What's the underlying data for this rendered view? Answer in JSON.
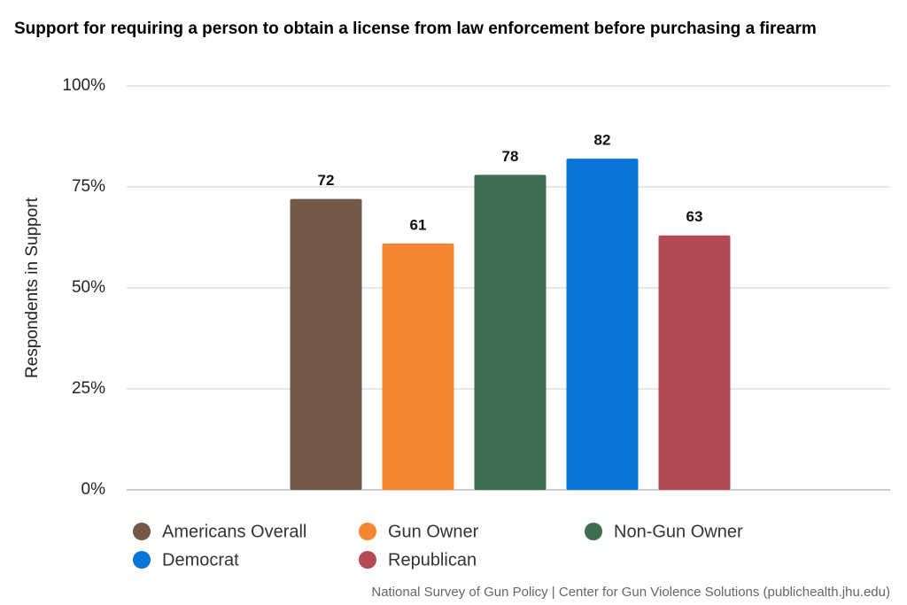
{
  "chart_data": {
    "type": "bar",
    "title": "Support for requiring a person to obtain a license from law enforcement before purchasing a firearm",
    "y_axis_label": "Respondents in Support",
    "source": "National Survey of Gun Policy | Center for Gun Violence Solutions (publichealth.jhu.edu)",
    "categories": [
      null
    ],
    "series": [
      {
        "name": "Americans Overall",
        "color": "#735848",
        "values": [
          72
        ]
      },
      {
        "name": "Gun Owner",
        "color": "#f58733",
        "values": [
          61
        ]
      },
      {
        "name": "Non-Gun Owner",
        "color": "#3d6e4f",
        "values": [
          78
        ]
      },
      {
        "name": "Democrat",
        "color": "#0a74d9",
        "values": [
          82
        ]
      },
      {
        "name": "Republican",
        "color": "#b54a57",
        "values": [
          63
        ]
      }
    ],
    "ylim": [
      0,
      100
    ],
    "yticks": [
      {
        "value": 0,
        "label": "0%"
      },
      {
        "value": 25,
        "label": "25%"
      },
      {
        "value": 50,
        "label": "50%"
      },
      {
        "value": 75,
        "label": "75%"
      },
      {
        "value": 100,
        "label": "100%"
      }
    ],
    "grid": true,
    "legend": "bottom"
  }
}
